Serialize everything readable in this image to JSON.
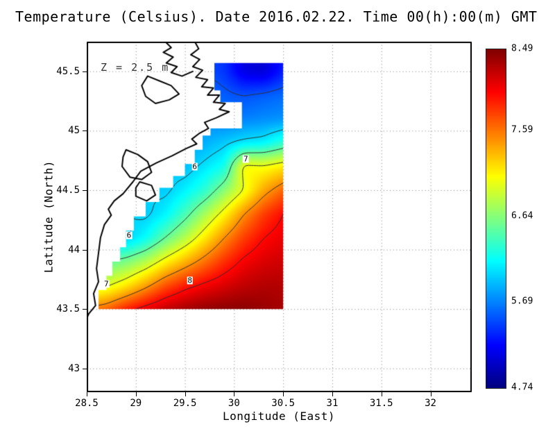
{
  "window": {
    "background": "#ffffff"
  },
  "colors": {
    "grid_line": "#8c8c8c",
    "contour_line": "#303030",
    "coastline": "#000000",
    "frame": "#000000",
    "text": "#000000",
    "annotation_text": "#333333",
    "background": "#ffffff"
  },
  "chart_data": {
    "type": "heatmap",
    "title": "Temperature (Celsius). Date 2016.02.22. Time 00(h):00(m) GMT",
    "annotation": "Z = 2.5 m",
    "xlabel": "Longitude (East)",
    "ylabel": "Latitude (North)",
    "x_range": [
      28.5,
      32.42
    ],
    "y_range": [
      42.8,
      45.75
    ],
    "x_ticks": {
      "values": [
        28.5,
        29,
        29.5,
        30,
        30.5,
        31,
        31.5,
        32
      ],
      "labels": [
        "28.5",
        "29",
        "29.5",
        "30",
        "30.5",
        "31",
        "31.5",
        "32"
      ]
    },
    "y_ticks": {
      "values": [
        43,
        43.5,
        44,
        44.5,
        45,
        45.5
      ],
      "labels": [
        "43",
        "43.5",
        "44",
        "44.5",
        "45",
        "45.5"
      ]
    },
    "colorbar": {
      "min": 4.74,
      "max": 8.49,
      "colormap": "jet",
      "tick_values": [
        8.49,
        7.59,
        6.64,
        5.69,
        4.74
      ],
      "tick_labels": [
        "8.49",
        "7.59",
        "6.64",
        "5.69",
        "4.74"
      ]
    },
    "contour_levels": [
      5,
      5.5,
      6,
      6.5,
      7,
      7.5,
      8
    ],
    "contour_labels": [
      {
        "text": "6",
        "lon": 29.6,
        "lat": 44.7
      },
      {
        "text": "7",
        "lon": 30.12,
        "lat": 44.76
      },
      {
        "text": "6",
        "lon": 28.93,
        "lat": 44.12
      },
      {
        "text": "7",
        "lon": 28.7,
        "lat": 43.71
      },
      {
        "text": "8",
        "lon": 29.55,
        "lat": 43.74
      }
    ],
    "grid": {
      "lon_start": 28.5,
      "lon_step": 0.2,
      "lat_start": 45.5,
      "lat_step": -0.2,
      "values": [
        [
          5.9,
          5.85,
          5.8,
          5.75,
          5.7,
          5.6,
          5.5,
          5.4,
          5.1,
          5.05,
          5.3
        ],
        [
          5.95,
          5.9,
          5.85,
          5.8,
          5.75,
          5.68,
          5.62,
          5.55,
          5.5,
          5.55,
          5.6
        ],
        [
          6.0,
          5.95,
          5.9,
          5.85,
          5.8,
          5.76,
          5.72,
          5.65,
          5.68,
          5.72,
          5.75
        ],
        [
          6.05,
          6.0,
          5.95,
          5.9,
          5.85,
          5.8,
          5.85,
          5.95,
          6.05,
          6.1,
          6.3
        ],
        [
          6.1,
          6.08,
          6.05,
          6.0,
          5.95,
          5.9,
          6.05,
          6.2,
          7.1,
          7.05,
          7.15
        ],
        [
          6.05,
          6.05,
          6.0,
          6.0,
          5.95,
          6.1,
          6.3,
          6.65,
          7.0,
          7.4,
          7.65
        ],
        [
          6.02,
          6.02,
          6.02,
          5.95,
          6.1,
          6.4,
          6.75,
          7.1,
          7.5,
          7.8,
          8.0
        ],
        [
          5.9,
          5.92,
          5.95,
          6.15,
          6.5,
          6.8,
          7.15,
          7.5,
          7.8,
          8.0,
          8.1
        ],
        [
          6.4,
          6.5,
          6.6,
          6.8,
          7.1,
          7.35,
          7.6,
          7.85,
          8.05,
          8.15,
          8.2
        ],
        [
          6.85,
          6.95,
          7.15,
          7.42,
          7.72,
          7.92,
          8.05,
          8.15,
          8.25,
          8.3,
          8.3
        ],
        [
          7.55,
          7.65,
          7.9,
          8.1,
          8.25,
          8.35,
          8.42,
          8.45,
          8.45,
          8.4,
          8.35
        ]
      ]
    },
    "region": [
      [
        29.8,
        45.57
      ],
      [
        30.5,
        45.57
      ],
      [
        30.5,
        43.5
      ],
      [
        28.62,
        43.5
      ],
      [
        28.62,
        43.66
      ],
      [
        28.7,
        43.66
      ],
      [
        28.7,
        43.78
      ],
      [
        28.76,
        43.78
      ],
      [
        28.76,
        43.9
      ],
      [
        28.84,
        43.9
      ],
      [
        28.84,
        44.02
      ],
      [
        28.9,
        44.02
      ],
      [
        28.9,
        44.16
      ],
      [
        28.98,
        44.16
      ],
      [
        28.98,
        44.28
      ],
      [
        29.1,
        44.28
      ],
      [
        29.1,
        44.4
      ],
      [
        29.24,
        44.4
      ],
      [
        29.24,
        44.52
      ],
      [
        29.38,
        44.52
      ],
      [
        29.38,
        44.62
      ],
      [
        29.5,
        44.62
      ],
      [
        29.5,
        44.72
      ],
      [
        29.6,
        44.72
      ],
      [
        29.6,
        44.84
      ],
      [
        29.68,
        44.84
      ],
      [
        29.68,
        44.96
      ],
      [
        29.76,
        44.96
      ],
      [
        29.76,
        45.02
      ],
      [
        30.08,
        45.02
      ],
      [
        30.08,
        45.24
      ],
      [
        29.86,
        45.24
      ],
      [
        29.86,
        45.34
      ],
      [
        29.8,
        45.34
      ]
    ],
    "coastlines": {
      "open": [
        [
          [
            29.6,
            45.75
          ],
          [
            29.64,
            45.69
          ],
          [
            29.56,
            45.64
          ],
          [
            29.65,
            45.6
          ],
          [
            29.58,
            45.54
          ],
          [
            29.68,
            45.51
          ],
          [
            29.61,
            45.45
          ],
          [
            29.73,
            45.43
          ],
          [
            29.67,
            45.37
          ],
          [
            29.79,
            45.36
          ],
          [
            29.73,
            45.3
          ],
          [
            29.85,
            45.3
          ],
          [
            29.79,
            45.24
          ],
          [
            29.91,
            45.23
          ],
          [
            29.85,
            45.18
          ],
          [
            29.95,
            45.16
          ],
          [
            29.82,
            45.11
          ],
          [
            29.7,
            45.07
          ],
          [
            29.74,
            45.02
          ],
          [
            29.65,
            44.98
          ],
          [
            29.57,
            44.93
          ],
          [
            29.62,
            44.89
          ],
          [
            29.51,
            44.85
          ],
          [
            29.37,
            44.79
          ],
          [
            29.21,
            44.73
          ],
          [
            29.05,
            44.66
          ],
          [
            28.97,
            44.57
          ],
          [
            28.87,
            44.47
          ],
          [
            28.78,
            44.41
          ],
          [
            28.72,
            44.34
          ],
          [
            28.75,
            44.29
          ],
          [
            28.68,
            44.21
          ],
          [
            28.64,
            44.1
          ],
          [
            28.62,
            43.97
          ],
          [
            28.6,
            43.84
          ],
          [
            28.62,
            43.73
          ],
          [
            28.57,
            43.63
          ],
          [
            28.59,
            43.53
          ],
          [
            28.52,
            43.46
          ],
          [
            28.5,
            43.42
          ]
        ],
        [
          [
            29.3,
            45.75
          ],
          [
            29.36,
            45.7
          ],
          [
            29.28,
            45.66
          ],
          [
            29.38,
            45.62
          ],
          [
            29.31,
            45.57
          ],
          [
            29.42,
            45.54
          ],
          [
            29.36,
            45.49
          ],
          [
            29.47,
            45.46
          ],
          [
            29.58,
            45.5
          ]
        ]
      ],
      "closed": [
        [
          [
            29.12,
            45.46
          ],
          [
            29.24,
            45.42
          ],
          [
            29.36,
            45.38
          ],
          [
            29.44,
            45.31
          ],
          [
            29.34,
            45.26
          ],
          [
            29.2,
            45.23
          ],
          [
            29.1,
            45.29
          ],
          [
            29.06,
            45.38
          ]
        ],
        [
          [
            28.9,
            44.84
          ],
          [
            29.02,
            44.8
          ],
          [
            29.12,
            44.74
          ],
          [
            29.16,
            44.65
          ],
          [
            29.06,
            44.59
          ],
          [
            28.94,
            44.61
          ],
          [
            28.86,
            44.7
          ],
          [
            28.87,
            44.78
          ]
        ],
        [
          [
            29.04,
            44.57
          ],
          [
            29.16,
            44.54
          ],
          [
            29.2,
            44.46
          ],
          [
            29.11,
            44.41
          ],
          [
            29.0,
            44.45
          ],
          [
            29.0,
            44.52
          ]
        ]
      ]
    }
  }
}
